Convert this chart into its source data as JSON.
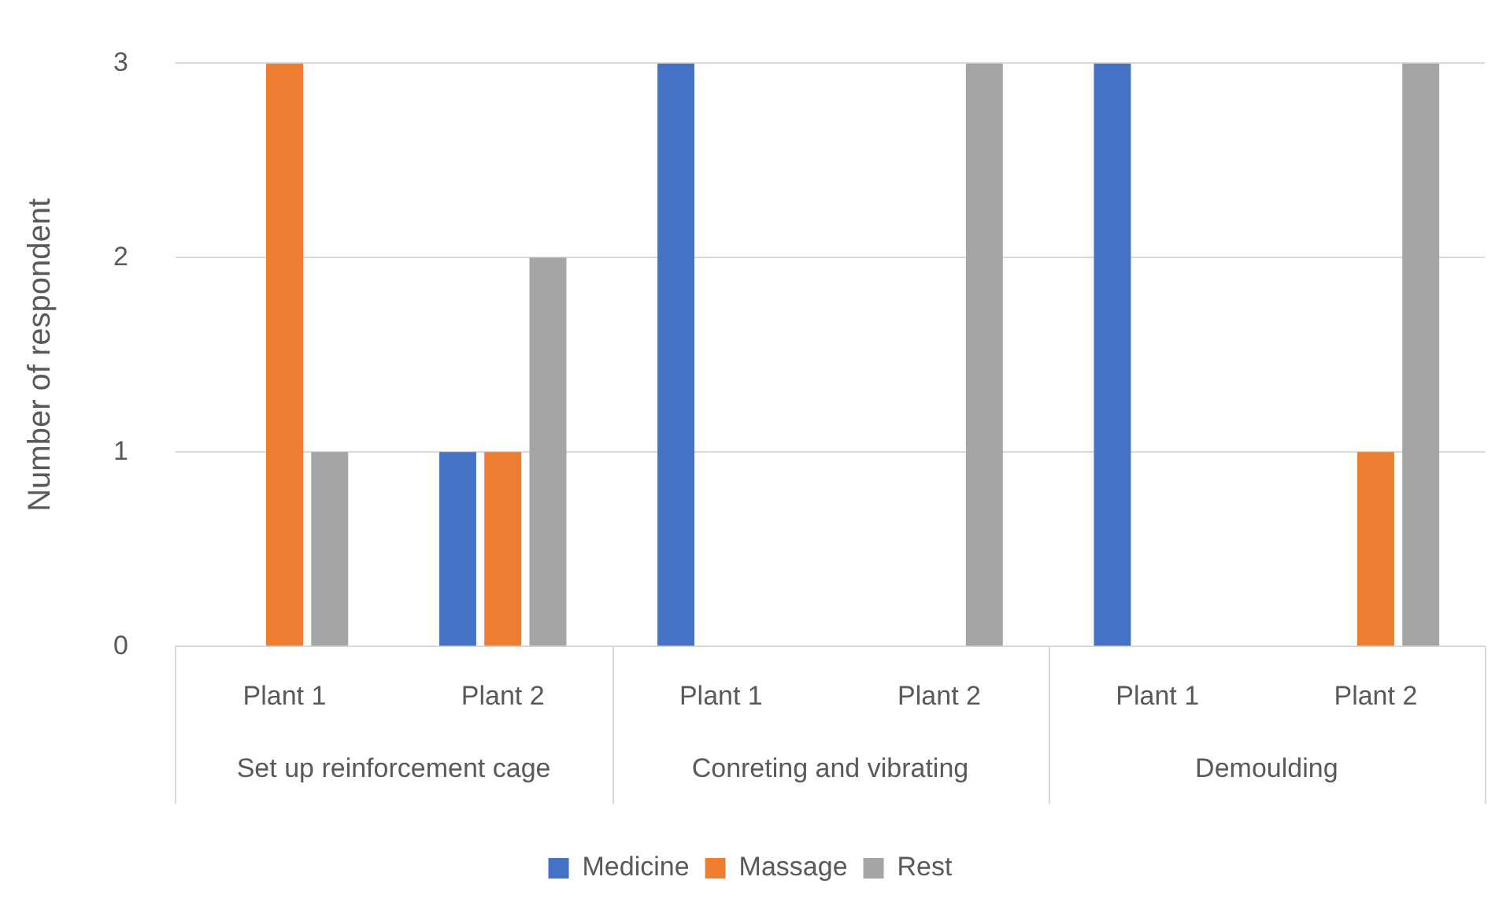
{
  "chart_data": {
    "type": "bar",
    "ylabel": "Number of respondent",
    "categories": [
      "Plant 1",
      "Plant 2",
      "Plant 1",
      "Plant 2",
      "Plant 1",
      "Plant 2"
    ],
    "annotations": [
      "Set up reinforcement cage",
      "Conreting and vibrating",
      "Demoulding"
    ],
    "series": [
      {
        "name": "Medicine",
        "color": "#4472c4",
        "values": [
          0,
          1,
          3,
          0,
          3,
          0
        ]
      },
      {
        "name": "Massage",
        "color": "#ed7d31",
        "values": [
          3,
          1,
          0,
          0,
          0,
          1
        ]
      },
      {
        "name": "Rest",
        "color": "#a5a5a5",
        "values": [
          1,
          2,
          0,
          3,
          0,
          3
        ]
      }
    ],
    "ylim": [
      0,
      3
    ],
    "yticks": [
      0,
      1,
      2,
      3
    ],
    "grid": "y",
    "legend": "bottom"
  }
}
